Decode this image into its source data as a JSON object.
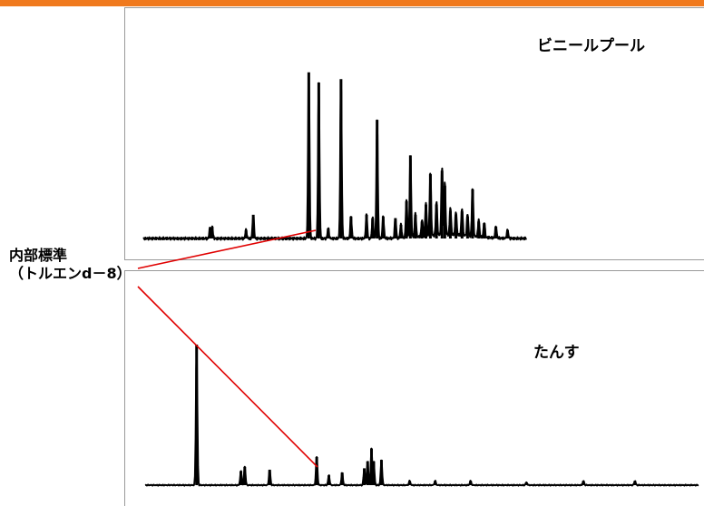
{
  "colors": {
    "accent_bar": "#f07a1e",
    "trace": "#000000",
    "pointer_line": "#e00000",
    "panel_border": "#9a9a9a"
  },
  "annotation": {
    "line1": "内部標準",
    "line2": "（トルエンd－8）"
  },
  "chart_data": [
    {
      "type": "line",
      "label": "ビニールプール",
      "x_range": [
        0,
        100
      ],
      "y_range": [
        0,
        100
      ],
      "grid": false,
      "legend": "none",
      "internal_standard_x": 31.0,
      "baseline": 0,
      "peaks": [
        {
          "x": 12.0,
          "y": 6
        },
        {
          "x": 12.4,
          "y": 7
        },
        {
          "x": 18.5,
          "y": 5
        },
        {
          "x": 19.8,
          "y": 14
        },
        {
          "x": 29.8,
          "y": 98
        },
        {
          "x": 31.6,
          "y": 92
        },
        {
          "x": 33.3,
          "y": 6
        },
        {
          "x": 35.6,
          "y": 94
        },
        {
          "x": 37.4,
          "y": 13
        },
        {
          "x": 40.2,
          "y": 14
        },
        {
          "x": 41.3,
          "y": 12
        },
        {
          "x": 42.1,
          "y": 70
        },
        {
          "x": 43.2,
          "y": 13
        },
        {
          "x": 45.4,
          "y": 12
        },
        {
          "x": 46.4,
          "y": 8
        },
        {
          "x": 47.4,
          "y": 22
        },
        {
          "x": 48.1,
          "y": 49
        },
        {
          "x": 49.0,
          "y": 14
        },
        {
          "x": 50.2,
          "y": 10
        },
        {
          "x": 50.9,
          "y": 20
        },
        {
          "x": 51.7,
          "y": 38
        },
        {
          "x": 52.8,
          "y": 20
        },
        {
          "x": 53.8,
          "y": 40
        },
        {
          "x": 54.3,
          "y": 31
        },
        {
          "x": 55.3,
          "y": 16
        },
        {
          "x": 56.3,
          "y": 14
        },
        {
          "x": 57.4,
          "y": 16
        },
        {
          "x": 58.4,
          "y": 13
        },
        {
          "x": 59.3,
          "y": 29
        },
        {
          "x": 60.4,
          "y": 10
        },
        {
          "x": 61.4,
          "y": 9
        },
        {
          "x": 63.5,
          "y": 7
        },
        {
          "x": 65.6,
          "y": 5
        }
      ]
    },
    {
      "type": "line",
      "label": "たんす",
      "x_range": [
        0,
        100
      ],
      "y_range": [
        0,
        100
      ],
      "grid": false,
      "legend": "none",
      "internal_standard_x": 31.0,
      "baseline": 0,
      "peaks": [
        {
          "x": 9.3,
          "y": 100
        },
        {
          "x": 17.3,
          "y": 10
        },
        {
          "x": 18.0,
          "y": 13
        },
        {
          "x": 22.5,
          "y": 11
        },
        {
          "x": 31.0,
          "y": 20
        },
        {
          "x": 33.2,
          "y": 7
        },
        {
          "x": 35.6,
          "y": 9
        },
        {
          "x": 39.6,
          "y": 12
        },
        {
          "x": 40.2,
          "y": 17
        },
        {
          "x": 40.9,
          "y": 26
        },
        {
          "x": 41.3,
          "y": 17
        },
        {
          "x": 42.7,
          "y": 18
        },
        {
          "x": 47.8,
          "y": 3
        },
        {
          "x": 52.4,
          "y": 3
        },
        {
          "x": 58.8,
          "y": 3
        },
        {
          "x": 68.9,
          "y": 2
        },
        {
          "x": 79.2,
          "y": 3
        },
        {
          "x": 88.5,
          "y": 3
        }
      ]
    }
  ]
}
